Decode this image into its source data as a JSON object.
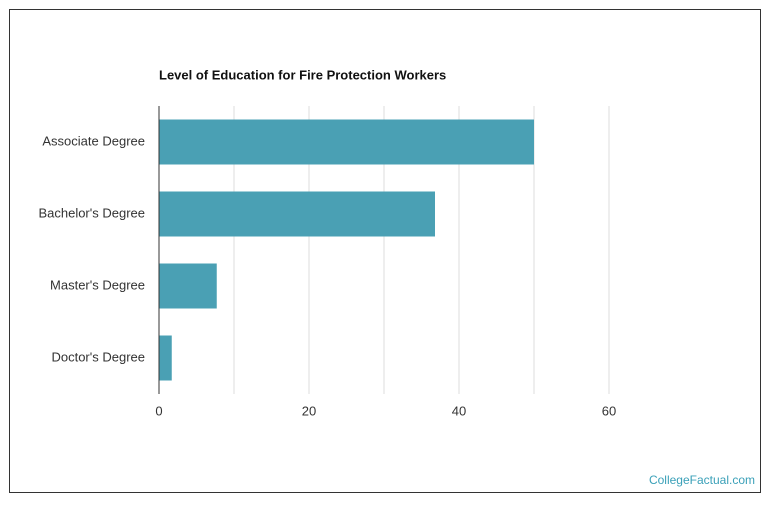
{
  "chart_data": {
    "type": "bar",
    "orientation": "horizontal",
    "title": "Level of Education for Fire Protection Workers",
    "categories": [
      "Associate Degree",
      "Bachelor's Degree",
      "Master's Degree",
      "Doctor's Degree"
    ],
    "values": [
      50,
      36.8,
      7.7,
      1.7
    ],
    "color": "#4aa0b4",
    "xlim": [
      0,
      60
    ],
    "xticks": [
      0,
      20,
      40,
      60
    ],
    "minor_xticks": [
      10,
      30,
      50
    ],
    "grid": true,
    "watermark": "CollegeFactual.com"
  }
}
